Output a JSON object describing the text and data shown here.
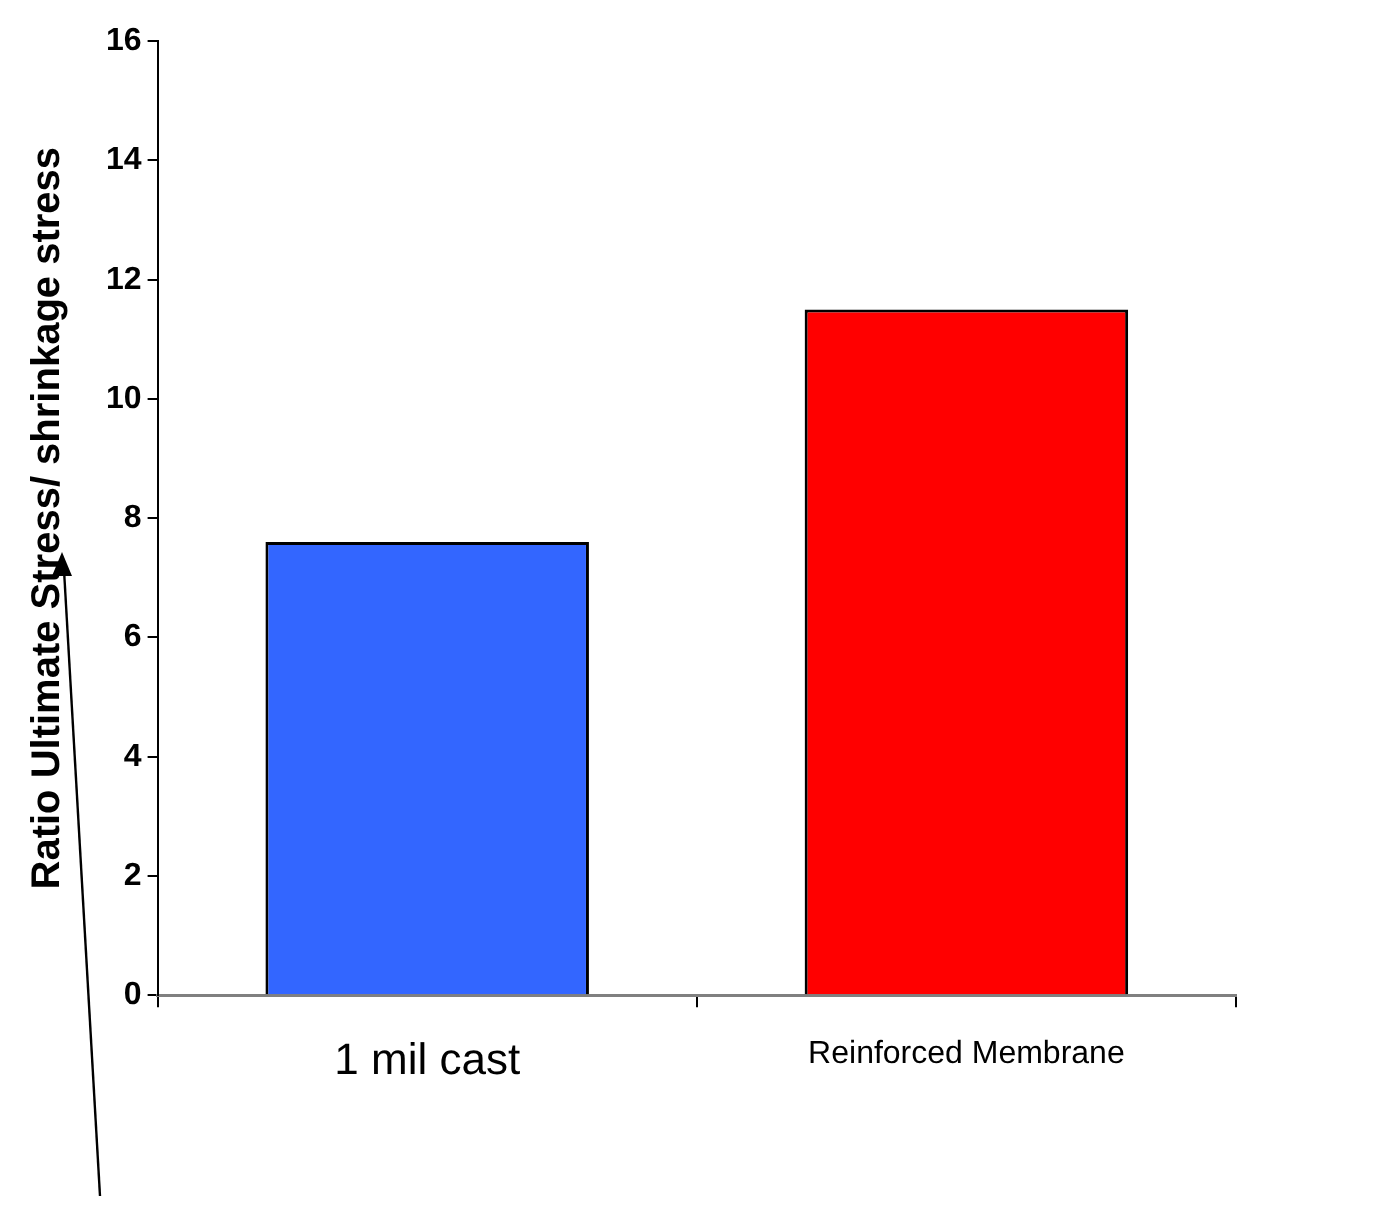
{
  "chart_data": {
    "type": "bar",
    "ylabel": "Ratio Ultimate Stress/ shrinkage stress",
    "categories": [
      "1 mil cast",
      "Reinforced Membrane"
    ],
    "series": [
      {
        "values": [
          7.6,
          11.5
        ],
        "colors": [
          "#3366ff",
          "#ff0000"
        ]
      }
    ],
    "ylim": [
      0,
      16
    ],
    "yticks": [
      0,
      2,
      4,
      6,
      8,
      10,
      12,
      14,
      16
    ],
    "grid": false,
    "legend": false
  }
}
